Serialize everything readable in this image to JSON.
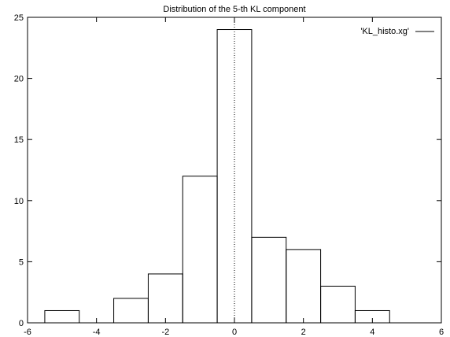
{
  "chart_data": {
    "type": "bar",
    "title": "Distribution of the 5-th KL component",
    "xlabel": "",
    "ylabel": "",
    "xlim": [
      -6,
      6
    ],
    "ylim": [
      0,
      25
    ],
    "x_ticks": [
      "-6",
      "-4",
      "-2",
      "0",
      "2",
      "4",
      "6"
    ],
    "y_ticks": [
      "0",
      "5",
      "10",
      "15",
      "20",
      "25"
    ],
    "bin_width": 1,
    "series": [
      {
        "name": "'KL_histo.xg'",
        "x": [
          -5,
          -4,
          -3,
          -2,
          -1,
          0,
          1,
          2,
          3,
          4
        ],
        "values": [
          1,
          0,
          2,
          4,
          12,
          24,
          7,
          6,
          3,
          1
        ]
      }
    ],
    "reference_line_x": 0,
    "legend_position": "top-right",
    "grid": false,
    "colors": {
      "bars": "#000000",
      "background": "#ffffff"
    }
  }
}
